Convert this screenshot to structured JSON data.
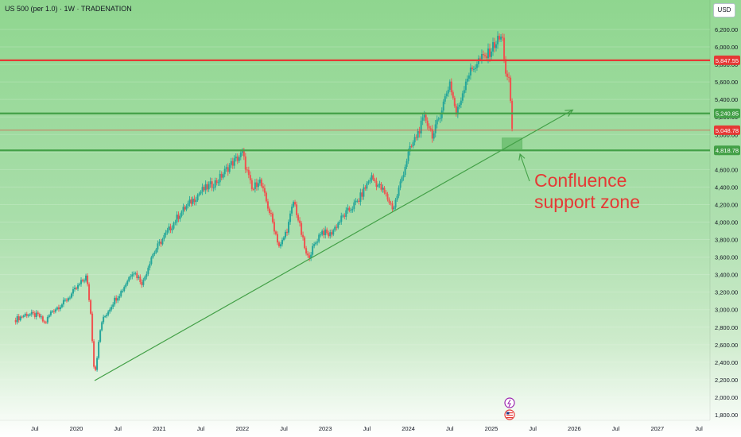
{
  "header": {
    "symbol_line": "US 500 (per 1.0) · 1W · TRADENATION"
  },
  "currency_button": "USD",
  "annotation": {
    "line1": "Confluence",
    "line2": "support zone"
  },
  "colors": {
    "resistance": "#e53935",
    "support": "#43a047",
    "trendline": "#43a047",
    "up_candle": "#26a69a",
    "down_candle": "#ef5350",
    "zone": "#66bb6a"
  },
  "chart_data": {
    "type": "candlestick",
    "title": "US 500 (per 1.0) · 1W · TRADENATION",
    "xlabel": "",
    "ylabel": "",
    "ylim": [
      1700,
      6350
    ],
    "xlim": [
      2019.25,
      2027.8
    ],
    "y_ticks": [
      "6,200.00",
      "6,000.00",
      "5,800.00",
      "5,600.00",
      "5,400.00",
      "5,200.00",
      "5,000.00",
      "4,800.00",
      "4,600.00",
      "4,400.00",
      "4,200.00",
      "4,000.00",
      "3,800.00",
      "3,600.00",
      "3,400.00",
      "3,200.00",
      "3,000.00",
      "2,800.00",
      "2,600.00",
      "2,400.00",
      "2,200.00",
      "2,000.00",
      "1,800.00"
    ],
    "x_ticks": [
      {
        "label": "Jul",
        "t": 2019.5
      },
      {
        "label": "2020",
        "t": 2020.0
      },
      {
        "label": "Jul",
        "t": 2020.5
      },
      {
        "label": "2021",
        "t": 2021.0
      },
      {
        "label": "Jul",
        "t": 2021.5
      },
      {
        "label": "2022",
        "t": 2022.0
      },
      {
        "label": "Jul",
        "t": 2022.5
      },
      {
        "label": "2023",
        "t": 2023.0
      },
      {
        "label": "Jul",
        "t": 2023.5
      },
      {
        "label": "2024",
        "t": 2024.0
      },
      {
        "label": "Jul",
        "t": 2024.5
      },
      {
        "label": "2025",
        "t": 2025.0
      },
      {
        "label": "Jul",
        "t": 2025.5
      },
      {
        "label": "2026",
        "t": 2026.0
      },
      {
        "label": "Jul",
        "t": 2026.5
      },
      {
        "label": "2027",
        "t": 2027.0
      },
      {
        "label": "Jul",
        "t": 2027.5
      }
    ],
    "horizontal_levels": [
      {
        "label": "5,847.55",
        "value": 5847.55,
        "kind": "resistance"
      },
      {
        "label": "5,240.85",
        "value": 5240.85,
        "kind": "support"
      },
      {
        "label": "5,048.78",
        "value": 5048.78,
        "kind": "last_price"
      },
      {
        "label": "4,818.78",
        "value": 4818.78,
        "kind": "support"
      }
    ],
    "trendline": [
      {
        "t": 2020.22,
        "v": 2190
      },
      {
        "t": 2025.98,
        "v": 5280
      }
    ],
    "support_zone": {
      "t0": 2025.13,
      "t1": 2025.37,
      "v0": 4830,
      "v1": 4960
    },
    "close_series": [
      {
        "t": 2019.25,
        "v": 2880
      },
      {
        "t": 2019.4,
        "v": 2950
      },
      {
        "t": 2019.55,
        "v": 2930
      },
      {
        "t": 2019.62,
        "v": 2840
      },
      {
        "t": 2019.7,
        "v": 2980
      },
      {
        "t": 2019.85,
        "v": 3080
      },
      {
        "t": 2020.0,
        "v": 3240
      },
      {
        "t": 2020.12,
        "v": 3380
      },
      {
        "t": 2020.17,
        "v": 3000
      },
      {
        "t": 2020.22,
        "v": 2240
      },
      {
        "t": 2020.3,
        "v": 2850
      },
      {
        "t": 2020.45,
        "v": 3100
      },
      {
        "t": 2020.55,
        "v": 3220
      },
      {
        "t": 2020.68,
        "v": 3450
      },
      {
        "t": 2020.8,
        "v": 3300
      },
      {
        "t": 2020.9,
        "v": 3600
      },
      {
        "t": 2021.0,
        "v": 3750
      },
      {
        "t": 2021.25,
        "v": 4100
      },
      {
        "t": 2021.5,
        "v": 4350
      },
      {
        "t": 2021.7,
        "v": 4470
      },
      {
        "t": 2021.85,
        "v": 4650
      },
      {
        "t": 2022.0,
        "v": 4780
      },
      {
        "t": 2022.12,
        "v": 4350
      },
      {
        "t": 2022.2,
        "v": 4500
      },
      {
        "t": 2022.35,
        "v": 4050
      },
      {
        "t": 2022.45,
        "v": 3700
      },
      {
        "t": 2022.55,
        "v": 3950
      },
      {
        "t": 2022.62,
        "v": 4250
      },
      {
        "t": 2022.78,
        "v": 3580
      },
      {
        "t": 2022.85,
        "v": 3700
      },
      {
        "t": 2022.95,
        "v": 3900
      },
      {
        "t": 2023.05,
        "v": 3850
      },
      {
        "t": 2023.2,
        "v": 4050
      },
      {
        "t": 2023.4,
        "v": 4250
      },
      {
        "t": 2023.55,
        "v": 4520
      },
      {
        "t": 2023.7,
        "v": 4350
      },
      {
        "t": 2023.82,
        "v": 4150
      },
      {
        "t": 2024.0,
        "v": 4780
      },
      {
        "t": 2024.2,
        "v": 5200
      },
      {
        "t": 2024.3,
        "v": 4980
      },
      {
        "t": 2024.5,
        "v": 5600
      },
      {
        "t": 2024.58,
        "v": 5220
      },
      {
        "t": 2024.7,
        "v": 5650
      },
      {
        "t": 2024.85,
        "v": 5850
      },
      {
        "t": 2024.95,
        "v": 5900
      },
      {
        "t": 2025.05,
        "v": 6050
      },
      {
        "t": 2025.13,
        "v": 6120
      },
      {
        "t": 2025.18,
        "v": 5650
      },
      {
        "t": 2025.22,
        "v": 5580
      },
      {
        "t": 2025.25,
        "v": 5050
      }
    ]
  }
}
